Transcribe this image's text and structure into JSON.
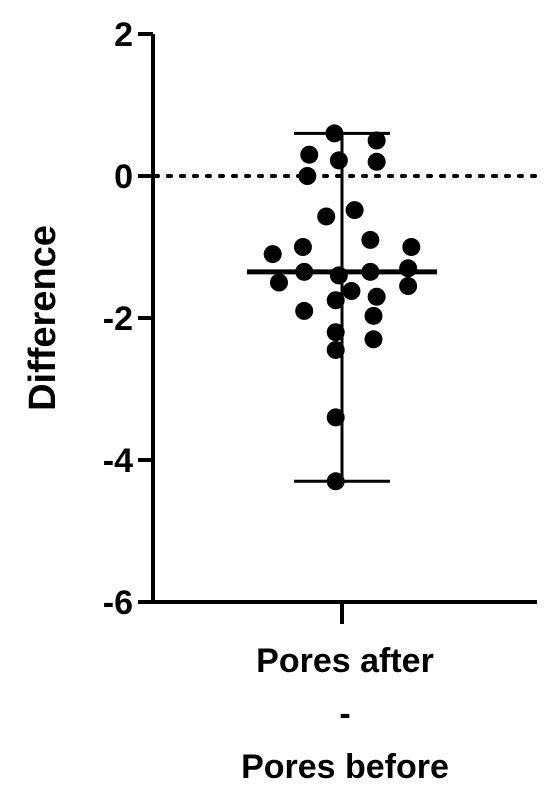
{
  "chart_data": {
    "type": "scatter",
    "ylabel": "Difference",
    "ylim": [
      -6,
      2
    ],
    "yticks": [
      2,
      0,
      -2,
      -4,
      -6
    ],
    "categories": [
      {
        "lines": [
          "Pores after",
          "-",
          "Pores before"
        ]
      }
    ],
    "reference_line": {
      "y": 0,
      "style": "dotted"
    },
    "summary": {
      "median": -1.35,
      "min": -4.3,
      "max": 0.6
    },
    "points": [
      {
        "x": -0.12,
        "y": 0.6
      },
      {
        "x": -0.52,
        "y": 0.3
      },
      {
        "x": -0.05,
        "y": 0.22
      },
      {
        "x": 0.55,
        "y": 0.5
      },
      {
        "x": 0.55,
        "y": 0.2
      },
      {
        "x": -0.55,
        "y": 0.0
      },
      {
        "x": -0.25,
        "y": -0.57
      },
      {
        "x": 0.2,
        "y": -0.48
      },
      {
        "x": -0.62,
        "y": -1.0
      },
      {
        "x": 0.45,
        "y": -0.9
      },
      {
        "x": 1.1,
        "y": -1.0
      },
      {
        "x": -1.1,
        "y": -1.1
      },
      {
        "x": -0.6,
        "y": -1.35
      },
      {
        "x": -0.05,
        "y": -1.4
      },
      {
        "x": 0.45,
        "y": -1.35
      },
      {
        "x": 1.05,
        "y": -1.3
      },
      {
        "x": -1.0,
        "y": -1.5
      },
      {
        "x": 1.05,
        "y": -1.55
      },
      {
        "x": 0.15,
        "y": -1.62
      },
      {
        "x": -0.1,
        "y": -1.75
      },
      {
        "x": 0.55,
        "y": -1.7
      },
      {
        "x": -0.6,
        "y": -1.9
      },
      {
        "x": 0.5,
        "y": -1.97
      },
      {
        "x": -0.1,
        "y": -2.2
      },
      {
        "x": 0.5,
        "y": -2.3
      },
      {
        "x": -0.1,
        "y": -2.45
      },
      {
        "x": -0.1,
        "y": -3.4
      },
      {
        "x": -0.1,
        "y": -4.3
      }
    ]
  }
}
